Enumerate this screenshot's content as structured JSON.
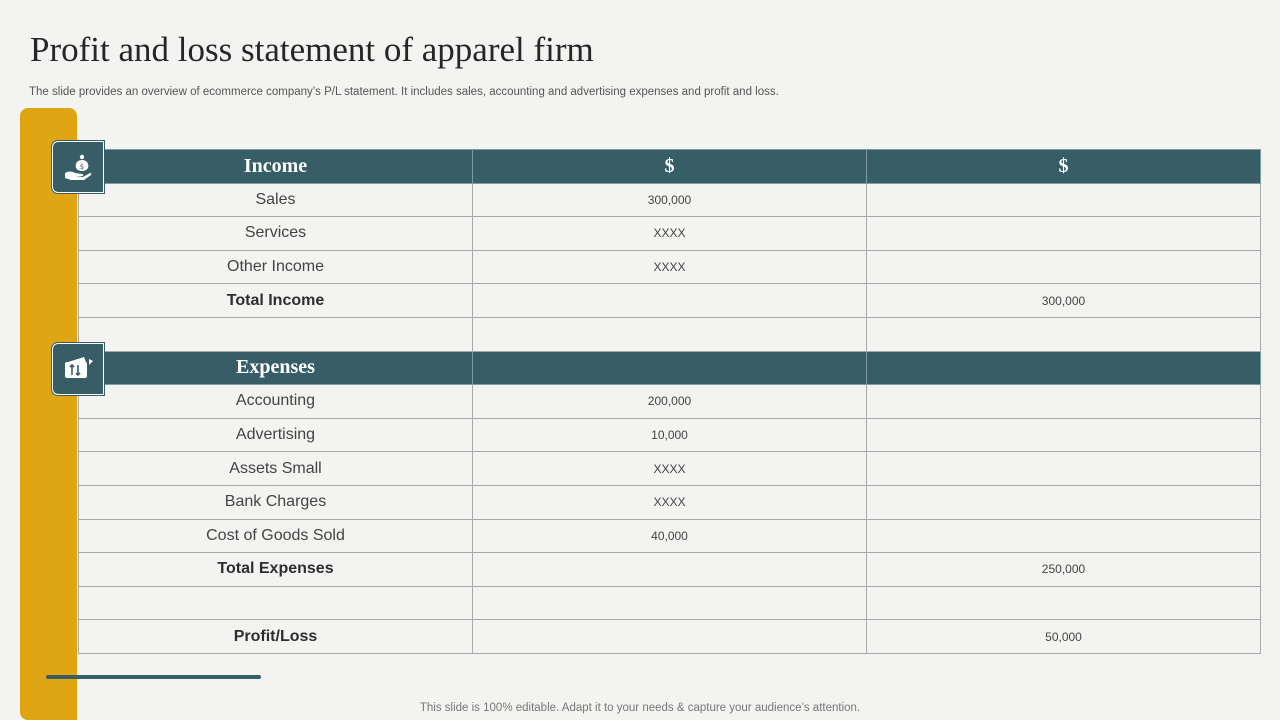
{
  "slide": {
    "title": "Profit and loss statement of apparel firm",
    "subtitle": "The slide provides an overview of ecommerce company’s P/L statement. It includes sales, accounting and advertising expenses and profit and loss.",
    "footer": "This slide is 100% editable. Adapt it to your needs & capture your audience’s attention."
  },
  "colors": {
    "accent_gold": "#dfa512",
    "header_teal": "#375e67",
    "background": "#f3f3f1"
  },
  "icons": {
    "income": "money-bag-hand-icon",
    "expenses": "wallet-transfer-icon"
  },
  "table": {
    "income_header": {
      "label": "Income",
      "col2": "$",
      "col3": "$"
    },
    "income_rows": [
      {
        "label": "Sales",
        "col2": "300,000",
        "col3": ""
      },
      {
        "label": "Services",
        "col2": "XXXX",
        "col3": ""
      },
      {
        "label": "Other Income",
        "col2": "XXXX",
        "col3": ""
      },
      {
        "label": "Total Income",
        "col2": "",
        "col3": "300,000"
      }
    ],
    "expenses_header": {
      "label": "Expenses",
      "col2": "",
      "col3": ""
    },
    "expense_rows": [
      {
        "label": "Accounting",
        "col2": "200,000",
        "col3": ""
      },
      {
        "label": "Advertising",
        "col2": "10,000",
        "col3": ""
      },
      {
        "label": "Assets Small",
        "col2": "XXXX",
        "col3": ""
      },
      {
        "label": "Bank Charges",
        "col2": "XXXX",
        "col3": ""
      },
      {
        "label": "Cost of Goods Sold",
        "col2": "40,000",
        "col3": ""
      },
      {
        "label": "Total Expenses",
        "col2": "",
        "col3": "250,000"
      }
    ],
    "profit_row": {
      "label": "Profit/Loss",
      "col2": "",
      "col3": "50,000"
    }
  }
}
